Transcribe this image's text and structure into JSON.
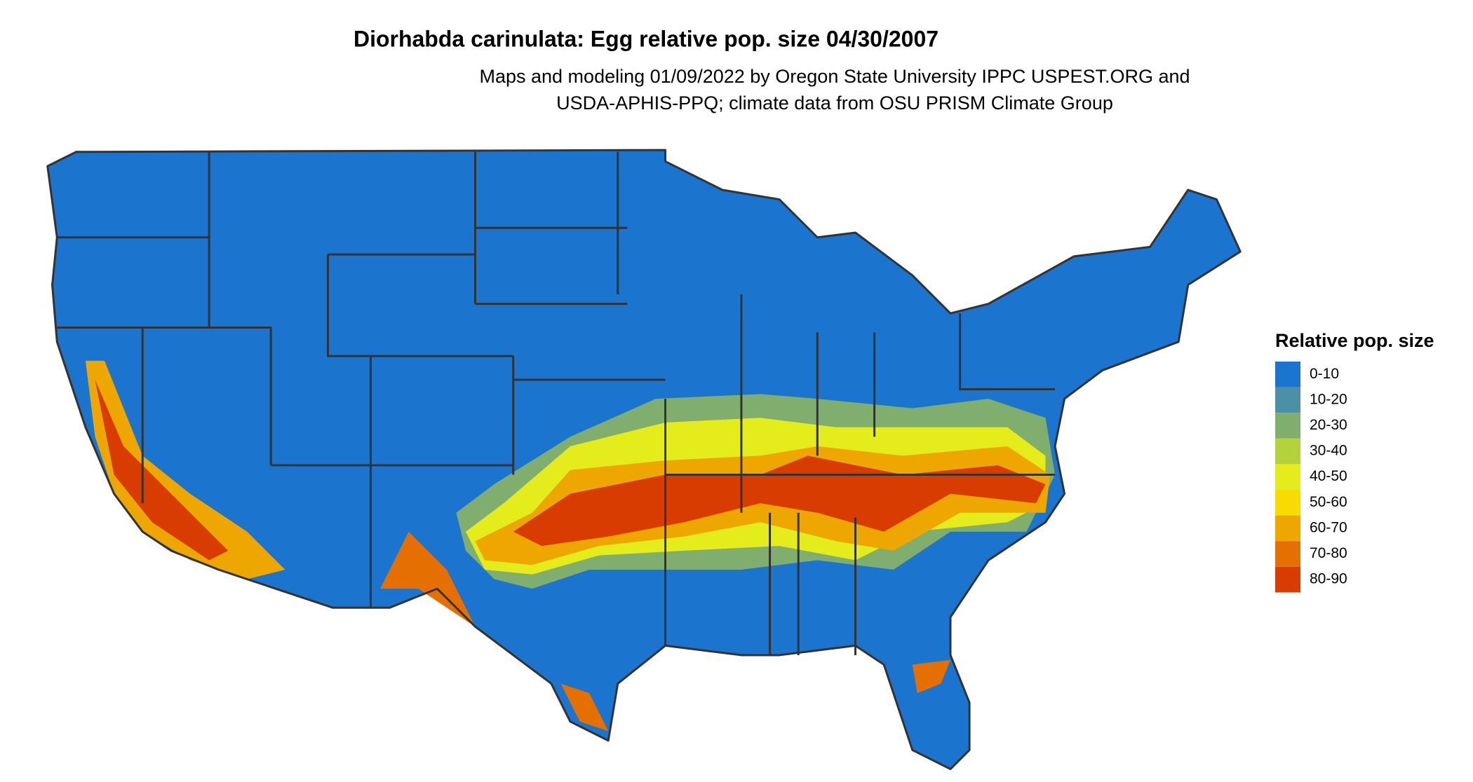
{
  "header": {
    "title": "Diorhabda carinulata: Egg relative pop. size 04/30/2007",
    "subtitle_lines": [
      "Maps and modeling 01/09/2022 by Oregon State University IPPC USPEST.ORG and",
      "USDA-APHIS-PPQ; climate data from OSU PRISM Climate Group"
    ]
  },
  "legend": {
    "title": "Relative pop. size",
    "items": [
      {
        "label": "0-10",
        "color": "#1b74cd"
      },
      {
        "label": "10-20",
        "color": "#4b90a6"
      },
      {
        "label": "20-30",
        "color": "#80ae6e"
      },
      {
        "label": "30-40",
        "color": "#b4d23c"
      },
      {
        "label": "40-50",
        "color": "#e5ec1b"
      },
      {
        "label": "50-60",
        "color": "#f6dc00"
      },
      {
        "label": "60-70",
        "color": "#eea600"
      },
      {
        "label": "70-80",
        "color": "#e56f00"
      },
      {
        "label": "80-90",
        "color": "#d83c00"
      }
    ]
  }
}
